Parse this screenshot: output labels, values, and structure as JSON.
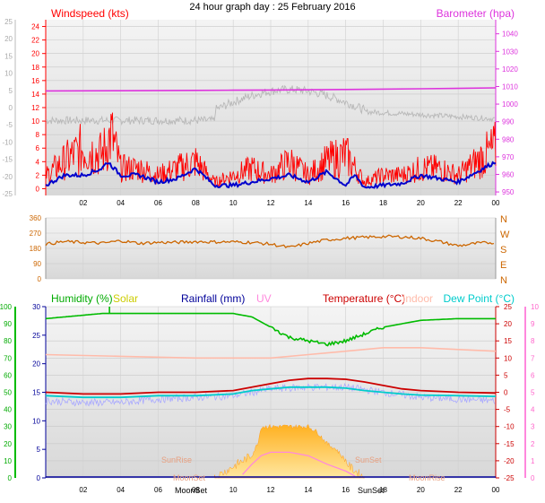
{
  "title": "24 hour graph day : 25 February 2016",
  "chart_data": [
    {
      "type": "line",
      "panel": "wind-barometer",
      "legend": {
        "windspeed": "Windspeed (kts)",
        "barometer": "Barometer (hpa)"
      },
      "colors": {
        "windspeed": "#ff0000",
        "gust_bg": "#bdbdbd",
        "wind_avg": "#0000cc",
        "barometer": "#dd33dd"
      },
      "x": {
        "ticks": [
          "02",
          "04",
          "06",
          "08",
          "10",
          "12",
          "14",
          "16",
          "18",
          "20",
          "22",
          "00"
        ]
      },
      "y_left": {
        "ticks": [
          24,
          22,
          20,
          18,
          16,
          14,
          12,
          10,
          8,
          6,
          4,
          2,
          0
        ],
        "range": [
          -1,
          25
        ]
      },
      "y_outer": {
        "ticks": [
          25,
          20,
          15,
          10,
          5,
          0,
          -5,
          -10,
          -15,
          -20,
          -25
        ]
      },
      "y_right": {
        "ticks": [
          1040,
          1030,
          1020,
          1010,
          1000,
          990,
          980,
          970,
          960,
          950
        ],
        "range": [
          948,
          1048
        ]
      },
      "series": [
        {
          "key": "barometer",
          "x": [
            0,
            4,
            8,
            10,
            12,
            16,
            20,
            24
          ],
          "values": [
            1007.5,
            1007.6,
            1007.8,
            1007.9,
            1008.0,
            1008.3,
            1008.7,
            1009.2
          ]
        },
        {
          "key": "wind_avg",
          "x": [
            0,
            1,
            2,
            3,
            3.3,
            4,
            5,
            6,
            7,
            8,
            9,
            10,
            11,
            12,
            13,
            14,
            15,
            16,
            16.5,
            17,
            18,
            19,
            20,
            21,
            22,
            23,
            24
          ],
          "values": [
            0.5,
            2,
            2,
            3,
            4,
            2,
            2,
            1,
            1.5,
            3,
            0.5,
            0.5,
            1,
            1.5,
            2,
            1,
            2.5,
            0.5,
            2,
            0.2,
            0.5,
            0.8,
            2,
            1.5,
            1,
            2.5,
            4
          ]
        },
        {
          "key": "windspeed",
          "x": [
            0,
            1,
            2,
            3,
            3.5,
            4,
            5,
            6,
            7,
            8,
            9,
            10,
            11,
            12,
            13,
            14,
            15,
            16,
            16.5,
            17,
            18,
            19,
            20,
            21,
            22,
            23,
            24
          ],
          "values": [
            2,
            4,
            6,
            5,
            8,
            3,
            3,
            2,
            3,
            4,
            1,
            2,
            3,
            2,
            4,
            2,
            4,
            5,
            3,
            1,
            2,
            2,
            3,
            3,
            2,
            4,
            6
          ]
        }
      ]
    },
    {
      "type": "line",
      "panel": "wind-direction",
      "y_left": {
        "ticks": [
          360,
          270,
          180,
          90,
          0
        ],
        "range": [
          0,
          360
        ]
      },
      "y_right": {
        "ticks": [
          "N",
          "W",
          "S",
          "E",
          "N"
        ]
      },
      "colors": {
        "direction": "#cc6600"
      },
      "series": [
        {
          "key": "direction",
          "x": [
            0,
            1,
            2,
            3,
            4,
            5,
            6,
            7,
            8,
            9,
            10,
            11,
            12,
            13,
            14,
            15,
            16,
            17,
            18,
            19,
            20,
            21,
            22,
            23,
            24
          ],
          "values": [
            205,
            220,
            215,
            210,
            225,
            210,
            215,
            215,
            220,
            218,
            218,
            215,
            205,
            185,
            210,
            230,
            240,
            245,
            250,
            248,
            240,
            220,
            195,
            210,
            215
          ]
        }
      ]
    },
    {
      "type": "line",
      "panel": "temperature-humidity",
      "legend": {
        "humidity": "Humidity (%)",
        "solar": "Solar",
        "rainfall": "Rainfall (mm)",
        "uv": "UV",
        "temperature": "Temperature (°C)",
        "indoor": "Indoor",
        "dewpoint": "Dew Point (°C)"
      },
      "colors": {
        "humidity": "#00bb00",
        "solar": "#cccc00",
        "rainfall": "#000099",
        "uv": "#ff88dd",
        "temperature": "#cc0000",
        "indoor": "#ffbbaa",
        "dewpoint": "#00cccc",
        "temp_band": "#aaaaff",
        "solar_fill": "#ffcc55"
      },
      "y_humidity": {
        "ticks": [
          100,
          90,
          80,
          70,
          60,
          50,
          40,
          30,
          20,
          10,
          0
        ],
        "range": [
          0,
          100
        ]
      },
      "y_rain": {
        "ticks": [
          30,
          25,
          20,
          15,
          10,
          5,
          0
        ],
        "range": [
          0,
          30
        ]
      },
      "y_temp": {
        "ticks": [
          25,
          20,
          15,
          10,
          5,
          0,
          -5,
          -10,
          -15,
          -20,
          -25
        ],
        "range": [
          -25,
          25
        ]
      },
      "y_uv": {
        "ticks": [
          10,
          9,
          8,
          7,
          6,
          5,
          4,
          3,
          2,
          1,
          0
        ],
        "range": [
          0,
          10
        ]
      },
      "annotations": {
        "sunrise": "SunRise",
        "sunset": "SunSet",
        "moonset": "MoonSet",
        "moonrise": "MoonRise",
        "moonset_axis": "MoonSet",
        "sunset_axis": "SunSet"
      },
      "series": [
        {
          "key": "humidity",
          "x": [
            0,
            1,
            3,
            3.5,
            6,
            8,
            9,
            10,
            11,
            12,
            13,
            14,
            15,
            16,
            17,
            18,
            19,
            20,
            22,
            24
          ],
          "values": [
            93,
            94,
            96,
            96,
            96,
            96,
            96,
            96,
            94,
            88,
            82,
            80,
            78,
            80,
            84,
            88,
            90,
            92,
            93,
            93
          ]
        },
        {
          "key": "indoor",
          "x": [
            0,
            4,
            8,
            10,
            12,
            14,
            16,
            18,
            20,
            22,
            24
          ],
          "values": [
            11,
            10.5,
            10,
            10,
            10,
            11,
            12,
            13,
            13,
            12.5,
            12
          ]
        },
        {
          "key": "temperature",
          "x": [
            0,
            2,
            4,
            6,
            8,
            10,
            11,
            12,
            13,
            14,
            15,
            16,
            17,
            18,
            19,
            20,
            22,
            24
          ],
          "values": [
            0,
            -0.5,
            -0.5,
            0,
            0,
            0.5,
            1.5,
            2.5,
            3.5,
            4,
            4,
            3.8,
            3,
            2,
            1,
            0.5,
            0,
            -0.2
          ]
        },
        {
          "key": "dewpoint",
          "x": [
            0,
            2,
            4,
            6,
            8,
            10,
            11,
            12,
            13,
            14,
            15,
            16,
            17,
            18,
            19,
            20,
            22,
            24
          ],
          "values": [
            -1,
            -1.5,
            -1.5,
            -1,
            -1,
            -0.5,
            0.5,
            1,
            1.5,
            1.5,
            1.5,
            1.2,
            0.5,
            0,
            -0.5,
            -0.8,
            -1,
            -1.2
          ]
        },
        {
          "key": "temp_band",
          "x": [
            0,
            2,
            4,
            6,
            8,
            10,
            12,
            14,
            16,
            18,
            20,
            22,
            24
          ],
          "values": [
            -2.5,
            -3,
            -3,
            -2,
            -1.5,
            -1,
            1,
            1.5,
            1.5,
            0,
            -1.5,
            -2,
            -2.5
          ]
        },
        {
          "key": "solar",
          "x": [
            9,
            9.5,
            10,
            10.5,
            11,
            11.3,
            11.5,
            12,
            13,
            14,
            14.5,
            15,
            15.5,
            16,
            16.2,
            17
          ],
          "values": [
            0,
            1,
            2,
            3,
            4,
            6,
            9,
            9,
            9,
            9,
            8,
            6,
            5,
            3,
            2,
            0
          ]
        },
        {
          "key": "uv",
          "x": [
            10.5,
            11,
            11.5,
            12,
            13,
            14,
            15,
            16,
            16.5
          ],
          "values": [
            0.2,
            0.8,
            1.3,
            1.5,
            1.5,
            1.3,
            0.8,
            0.4,
            0.1
          ]
        }
      ]
    }
  ]
}
